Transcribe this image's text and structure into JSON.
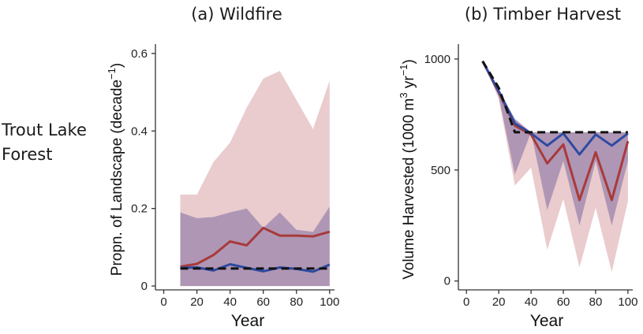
{
  "row_label": {
    "line1": "Trout Lake",
    "line2": "Forest"
  },
  "colors": {
    "red_band": "#e6c3c5",
    "purple_band": "#a48cb0",
    "red_line": "#a83a3a",
    "blue_line": "#2d4aa0",
    "dashed": "#111111"
  },
  "chart_data": [
    {
      "id": "wildfire",
      "type": "area",
      "title": "(a) Wildfire",
      "xlabel": "Year",
      "ylabel_main": "Propn. of Landscape (decade",
      "ylabel_sup": "−1",
      "ylabel_end": ")",
      "xlim": [
        -5,
        102
      ],
      "ylim": [
        -0.01,
        0.62
      ],
      "xticks": [
        "0",
        "20",
        "40",
        "60",
        "80",
        "100"
      ],
      "yticks": [
        "0",
        "0.2",
        "0.4",
        "0.6"
      ],
      "x": [
        10,
        20,
        30,
        40,
        50,
        60,
        70,
        80,
        90,
        100
      ],
      "bands": [
        {
          "color": "red",
          "upper": [
            0.236,
            0.236,
            0.32,
            0.37,
            0.46,
            0.535,
            0.555,
            0.48,
            0.405,
            0.53
          ],
          "lower": [
            0,
            0,
            0,
            0,
            0,
            0,
            0,
            0,
            0,
            0
          ]
        },
        {
          "color": "purple",
          "upper": [
            0.19,
            0.175,
            0.178,
            0.19,
            0.2,
            0.15,
            0.19,
            0.145,
            0.14,
            0.205
          ],
          "lower": [
            0,
            0,
            0,
            0,
            0,
            0,
            0,
            0,
            0,
            0
          ]
        }
      ],
      "series": [
        {
          "color": "red",
          "dash": false,
          "values": [
            0.05,
            0.057,
            0.08,
            0.115,
            0.105,
            0.15,
            0.13,
            0.13,
            0.128,
            0.14
          ]
        },
        {
          "color": "blue",
          "dash": false,
          "values": [
            0.047,
            0.048,
            0.04,
            0.056,
            0.047,
            0.038,
            0.048,
            0.044,
            0.037,
            0.055
          ]
        },
        {
          "color": "dashed",
          "dash": true,
          "values": [
            0.045,
            0.045,
            0.045,
            0.045,
            0.045,
            0.045,
            0.045,
            0.045,
            0.045,
            0.045
          ]
        }
      ]
    },
    {
      "id": "timber",
      "type": "area",
      "title": "(b) Timber Harvest",
      "xlabel": "Year",
      "ylabel_main": "Volume Harvested (1000 m",
      "ylabel_sup1": "3",
      "ylabel_mid": " yr",
      "ylabel_sup2": "−1",
      "ylabel_end": ")",
      "xlim": [
        -5,
        102
      ],
      "ylim": [
        -40,
        1060
      ],
      "xticks": [
        "0",
        "20",
        "40",
        "60",
        "80",
        "100"
      ],
      "yticks": [
        "0",
        "500",
        "1000"
      ],
      "x": [
        10,
        20,
        30,
        40,
        50,
        60,
        70,
        80,
        90,
        100
      ],
      "bands": [
        {
          "color": "red",
          "upper": [
            990,
            860,
            730,
            670,
            670,
            670,
            670,
            670,
            670,
            670
          ],
          "lower": [
            990,
            820,
            430,
            510,
            140,
            370,
            60,
            330,
            40,
            360
          ]
        },
        {
          "color": "purple",
          "upper": [
            990,
            860,
            730,
            670,
            670,
            670,
            670,
            670,
            670,
            670
          ],
          "lower": [
            990,
            830,
            480,
            670,
            320,
            540,
            250,
            540,
            250,
            540
          ]
        }
      ],
      "series": [
        {
          "color": "red",
          "dash": false,
          "values": [
            990,
            850,
            700,
            660,
            530,
            615,
            365,
            580,
            365,
            630
          ]
        },
        {
          "color": "blue",
          "dash": false,
          "values": [
            990,
            855,
            710,
            665,
            610,
            665,
            570,
            660,
            610,
            665
          ]
        },
        {
          "color": "dashed",
          "dash": true,
          "values": [
            990,
            870,
            670,
            670,
            670,
            670,
            670,
            670,
            670,
            670
          ]
        }
      ]
    }
  ]
}
